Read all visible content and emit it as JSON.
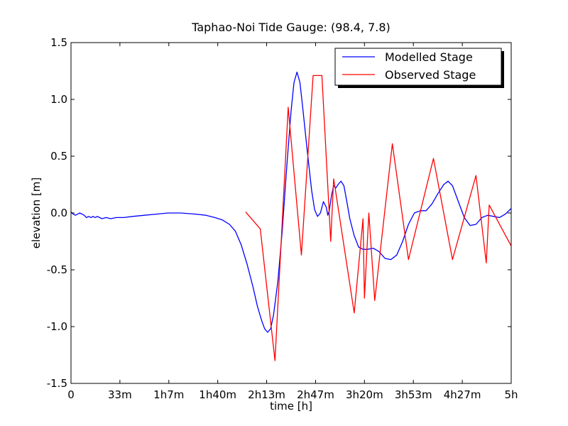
{
  "chart_data": {
    "type": "line",
    "title": "Taphao-Noi Tide Gauge: (98.4, 7.8)",
    "xlabel": "time [h]",
    "ylabel": "elevation [m]",
    "xlim": [
      0,
      300
    ],
    "ylim": [
      -1.5,
      1.5
    ],
    "x_ticks": [
      {
        "value": 0,
        "label": "0"
      },
      {
        "value": 33.33,
        "label": "33m"
      },
      {
        "value": 66.67,
        "label": "1h7m"
      },
      {
        "value": 100,
        "label": "1h40m"
      },
      {
        "value": 133.33,
        "label": "2h13m"
      },
      {
        "value": 166.67,
        "label": "2h47m"
      },
      {
        "value": 200,
        "label": "3h20m"
      },
      {
        "value": 233.33,
        "label": "3h53m"
      },
      {
        "value": 266.67,
        "label": "4h27m"
      },
      {
        "value": 300,
        "label": "5h"
      }
    ],
    "y_ticks": [
      {
        "value": 1.5,
        "label": "1.5"
      },
      {
        "value": 1.0,
        "label": "1.0"
      },
      {
        "value": 0.5,
        "label": "0.5"
      },
      {
        "value": 0.0,
        "label": "0.0"
      },
      {
        "value": -0.5,
        "label": "-0.5"
      },
      {
        "value": -1.0,
        "label": "-1.0"
      },
      {
        "value": -1.5,
        "label": "-1.5"
      }
    ],
    "grid": false,
    "legend": "top-right",
    "series": [
      {
        "name": "Modelled Stage",
        "color": "#0000ff",
        "points": [
          [
            0,
            0.01
          ],
          [
            1.5,
            -0.01
          ],
          [
            3,
            -0.02
          ],
          [
            4.5,
            -0.01
          ],
          [
            6,
            0.0
          ],
          [
            7.5,
            -0.01
          ],
          [
            9,
            -0.02
          ],
          [
            10.5,
            -0.04
          ],
          [
            12,
            -0.03
          ],
          [
            13.5,
            -0.04
          ],
          [
            15,
            -0.03
          ],
          [
            16.5,
            -0.04
          ],
          [
            18,
            -0.03
          ],
          [
            21,
            -0.05
          ],
          [
            24,
            -0.04
          ],
          [
            27,
            -0.05
          ],
          [
            31,
            -0.04
          ],
          [
            36,
            -0.04
          ],
          [
            42,
            -0.03
          ],
          [
            50,
            -0.02
          ],
          [
            58,
            -0.01
          ],
          [
            66,
            0.0
          ],
          [
            75,
            0.0
          ],
          [
            85,
            -0.01
          ],
          [
            92,
            -0.02
          ],
          [
            98,
            -0.04
          ],
          [
            103,
            -0.06
          ],
          [
            108,
            -0.1
          ],
          [
            112,
            -0.16
          ],
          [
            116,
            -0.28
          ],
          [
            120,
            -0.45
          ],
          [
            124,
            -0.65
          ],
          [
            127,
            -0.82
          ],
          [
            130,
            -0.95
          ],
          [
            132,
            -1.02
          ],
          [
            134,
            -1.05
          ],
          [
            136,
            -1.02
          ],
          [
            138,
            -0.9
          ],
          [
            141,
            -0.6
          ],
          [
            144,
            -0.15
          ],
          [
            147,
            0.4
          ],
          [
            150,
            0.9
          ],
          [
            152,
            1.15
          ],
          [
            154,
            1.24
          ],
          [
            156,
            1.15
          ],
          [
            158,
            0.92
          ],
          [
            161,
            0.55
          ],
          [
            164,
            0.2
          ],
          [
            166,
            0.03
          ],
          [
            168,
            -0.03
          ],
          [
            170,
            0.0
          ],
          [
            172,
            0.1
          ],
          [
            174,
            0.05
          ],
          [
            175,
            -0.02
          ],
          [
            176,
            0.02
          ],
          [
            177.5,
            0.15
          ],
          [
            179,
            0.24
          ],
          [
            180.5,
            0.22
          ],
          [
            182,
            0.25
          ],
          [
            184,
            0.28
          ],
          [
            186,
            0.24
          ],
          [
            188,
            0.1
          ],
          [
            190,
            -0.05
          ],
          [
            193,
            -0.2
          ],
          [
            196,
            -0.3
          ],
          [
            199,
            -0.32
          ],
          [
            202,
            -0.32
          ],
          [
            206,
            -0.31
          ],
          [
            210,
            -0.34
          ],
          [
            214,
            -0.4
          ],
          [
            218,
            -0.41
          ],
          [
            222,
            -0.37
          ],
          [
            226,
            -0.25
          ],
          [
            230,
            -0.1
          ],
          [
            234,
            0.0
          ],
          [
            238,
            0.02
          ],
          [
            242,
            0.02
          ],
          [
            246,
            0.08
          ],
          [
            250,
            0.17
          ],
          [
            254,
            0.25
          ],
          [
            257,
            0.28
          ],
          [
            260,
            0.24
          ],
          [
            264,
            0.1
          ],
          [
            268,
            -0.04
          ],
          [
            272,
            -0.11
          ],
          [
            276,
            -0.1
          ],
          [
            280,
            -0.04
          ],
          [
            284,
            -0.02
          ],
          [
            288,
            -0.03
          ],
          [
            292,
            -0.04
          ],
          [
            296,
            -0.01
          ],
          [
            300,
            0.04
          ]
        ]
      },
      {
        "name": "Observed Stage",
        "color": "#ff0000",
        "points": [
          [
            119,
            0.01
          ],
          [
            129,
            -0.14
          ],
          [
            139,
            -1.3
          ],
          [
            148,
            0.93
          ],
          [
            157,
            -0.37
          ],
          [
            165,
            1.21
          ],
          [
            171,
            1.21
          ],
          [
            177,
            -0.25
          ],
          [
            179,
            0.3
          ],
          [
            180,
            0.22
          ],
          [
            193,
            -0.88
          ],
          [
            199,
            -0.05
          ],
          [
            200,
            -0.75
          ],
          [
            203,
            0.0
          ],
          [
            207,
            -0.77
          ],
          [
            219,
            0.61
          ],
          [
            230,
            -0.41
          ],
          [
            247,
            0.48
          ],
          [
            260,
            -0.41
          ],
          [
            276,
            0.33
          ],
          [
            283,
            -0.44
          ],
          [
            285,
            0.07
          ],
          [
            300,
            -0.29
          ]
        ]
      }
    ]
  }
}
